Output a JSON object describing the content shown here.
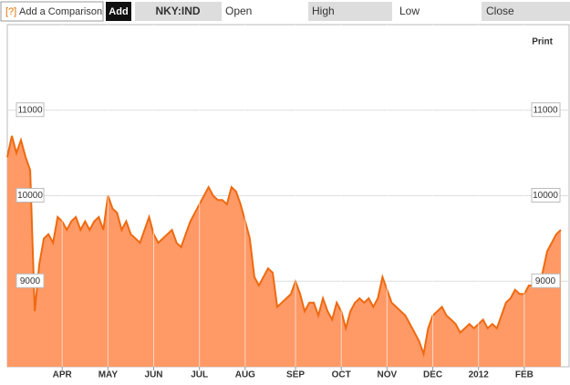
{
  "toolbar": {
    "help": "[?]",
    "comparison": "Add a Comparison",
    "add": "Add",
    "symbol": "NKY:IND",
    "fields": [
      "Open",
      "High",
      "Low",
      "Close"
    ]
  },
  "print": "Print",
  "chart_data": {
    "type": "area",
    "categories": [
      null,
      null,
      null,
      null,
      null,
      null,
      null,
      null,
      null,
      null,
      null,
      null,
      "APR",
      null,
      null,
      null,
      null,
      null,
      null,
      null,
      null,
      null,
      "MAY",
      null,
      null,
      null,
      null,
      null,
      null,
      null,
      null,
      null,
      "JUN",
      null,
      null,
      null,
      null,
      null,
      null,
      null,
      null,
      null,
      "JUL",
      null,
      null,
      null,
      null,
      null,
      null,
      null,
      null,
      null,
      "AUG",
      null,
      null,
      null,
      null,
      null,
      null,
      null,
      null,
      null,
      null,
      "SEP",
      null,
      null,
      null,
      null,
      null,
      null,
      null,
      null,
      null,
      "OCT",
      null,
      null,
      null,
      null,
      null,
      null,
      null,
      null,
      null,
      "NOV",
      null,
      null,
      null,
      null,
      null,
      null,
      null,
      null,
      null,
      "DEC",
      null,
      null,
      null,
      null,
      null,
      null,
      null,
      null,
      null,
      "2012",
      null,
      null,
      null,
      null,
      null,
      null,
      null,
      null,
      null,
      "FEB",
      null,
      null,
      null,
      null,
      null,
      null,
      null,
      null
    ],
    "series": [
      {
        "name": "NKY:IND",
        "color": "#ff9966",
        "line_color": "#ee6a10",
        "values": [
          10450,
          10700,
          10500,
          10650,
          10450,
          10300,
          8650,
          9200,
          9500,
          9550,
          9450,
          9750,
          9700,
          9600,
          9700,
          9750,
          9600,
          9700,
          9600,
          9700,
          9750,
          9600,
          10000,
          9850,
          9800,
          9600,
          9700,
          9550,
          9500,
          9450,
          9600,
          9750,
          9550,
          9450,
          9500,
          9550,
          9600,
          9450,
          9400,
          9550,
          9700,
          9800,
          9900,
          10000,
          10100,
          10000,
          9950,
          9950,
          9900,
          10100,
          10050,
          9900,
          9700,
          9500,
          9050,
          8950,
          9050,
          9150,
          9100,
          8700,
          8750,
          8800,
          8850,
          9000,
          8850,
          8650,
          8750,
          8750,
          8600,
          8800,
          8650,
          8550,
          8750,
          8650,
          8450,
          8650,
          8750,
          8800,
          8750,
          8800,
          8700,
          8800,
          9050,
          8900,
          8750,
          8700,
          8650,
          8600,
          8500,
          8400,
          8300,
          8150,
          8450,
          8600,
          8650,
          8700,
          8600,
          8550,
          8500,
          8400,
          8450,
          8500,
          8450,
          8500,
          8550,
          8450,
          8500,
          8450,
          8600,
          8750,
          8800,
          8900,
          8850,
          8850,
          8950,
          8950,
          8950,
          9100,
          9350,
          9450,
          9550,
          9600
        ]
      }
    ],
    "ylim": [
      8000,
      12000
    ],
    "yticks": [
      9000,
      10000,
      11000
    ],
    "grid": true
  }
}
